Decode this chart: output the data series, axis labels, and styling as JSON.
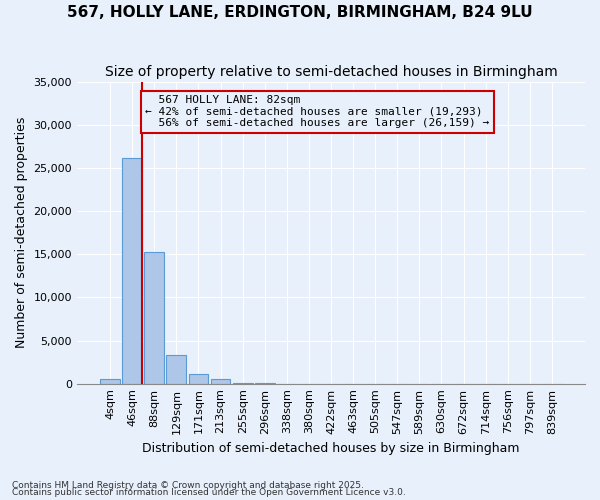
{
  "title": "567, HOLLY LANE, ERDINGTON, BIRMINGHAM, B24 9LU",
  "subtitle": "Size of property relative to semi-detached houses in Birmingham",
  "xlabel": "Distribution of semi-detached houses by size in Birmingham",
  "ylabel": "Number of semi-detached properties",
  "footnote1": "Contains HM Land Registry data © Crown copyright and database right 2025.",
  "footnote2": "Contains public sector information licensed under the Open Government Licence v3.0.",
  "bin_labels": [
    "4sqm",
    "46sqm",
    "88sqm",
    "129sqm",
    "171sqm",
    "213sqm",
    "255sqm",
    "296sqm",
    "338sqm",
    "380sqm",
    "422sqm",
    "463sqm",
    "505sqm",
    "547sqm",
    "589sqm",
    "630sqm",
    "672sqm",
    "714sqm",
    "756sqm",
    "797sqm",
    "839sqm"
  ],
  "bar_values": [
    500,
    26100,
    15200,
    3300,
    1150,
    600,
    100,
    50,
    20,
    10,
    5,
    2,
    2,
    1,
    1,
    0,
    0,
    0,
    0,
    0,
    0
  ],
  "bar_color": "#aec6e8",
  "bar_edge_color": "#5b9bd5",
  "property_size": 82,
  "property_label": "567 HOLLY LANE: 82sqm",
  "smaller_pct": 42,
  "smaller_count": 19293,
  "larger_pct": 56,
  "larger_count": 26159,
  "ylim": [
    0,
    35000
  ],
  "yticks": [
    0,
    5000,
    10000,
    15000,
    20000,
    25000,
    30000,
    35000
  ],
  "annotation_box_color": "#cc0000",
  "vline_color": "#cc0000",
  "bg_color": "#e8f0fb",
  "grid_color": "#ffffff",
  "title_fontsize": 11,
  "subtitle_fontsize": 10,
  "axis_label_fontsize": 9,
  "tick_fontsize": 8,
  "annot_fontsize": 8
}
